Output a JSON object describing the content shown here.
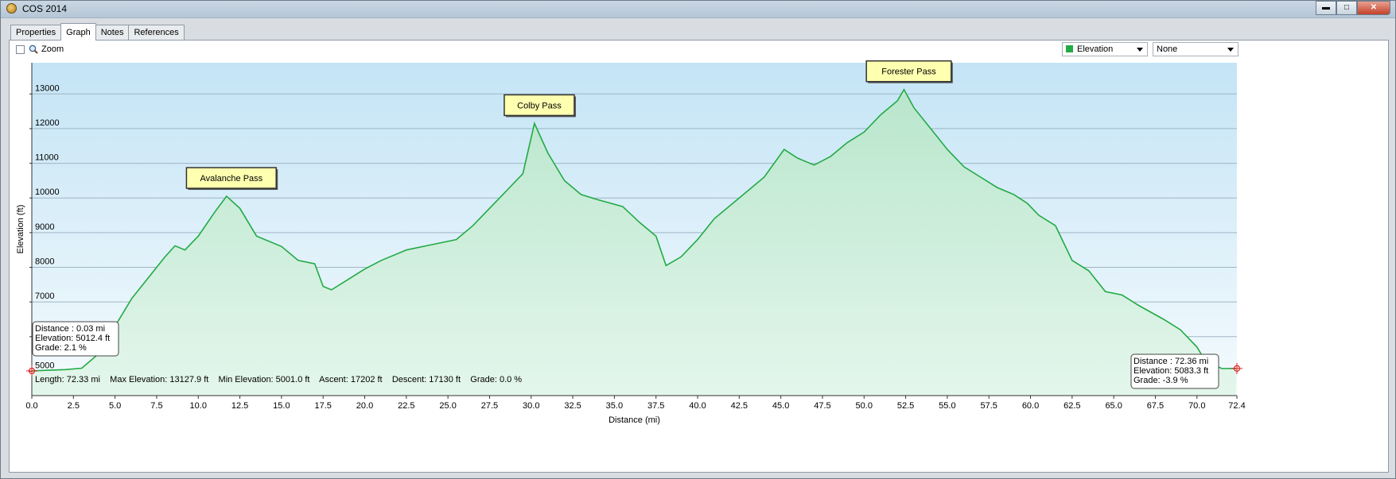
{
  "window": {
    "title": "COS 2014",
    "minimize": "▬",
    "maximize": "□",
    "close": "✕"
  },
  "tabs": [
    "Properties",
    "Graph",
    "Notes",
    "References"
  ],
  "toolbar": {
    "zoom_label": "Zoom",
    "series_select": "Elevation",
    "second_select": "None",
    "series_color": "#22aa44"
  },
  "chart_data": {
    "type": "area",
    "xlabel": "Distance  (mi)",
    "ylabel": "Elevation (ft)",
    "xlim": [
      0,
      72.4
    ],
    "ylim": [
      4300,
      13900
    ],
    "x_ticks": [
      "0.0",
      "2.5",
      "5.0",
      "7.5",
      "10.0",
      "12.5",
      "15.0",
      "17.5",
      "20.0",
      "22.5",
      "25.0",
      "27.5",
      "30.0",
      "32.5",
      "35.0",
      "37.5",
      "40.0",
      "42.5",
      "45.0",
      "47.5",
      "50.0",
      "52.5",
      "55.0",
      "57.5",
      "60.0",
      "62.5",
      "65.0",
      "67.5",
      "70.0",
      "72.4"
    ],
    "y_ticks": [
      "5000",
      "6000",
      "7000",
      "8000",
      "9000",
      "10000",
      "11000",
      "12000",
      "13000"
    ],
    "series": [
      {
        "name": "Elevation",
        "x": [
          0,
          1,
          2,
          3,
          4,
          5,
          6,
          7,
          8,
          8.6,
          9.2,
          10,
          11,
          11.7,
          12.5,
          13.5,
          15,
          16,
          17,
          17.5,
          18,
          19,
          20,
          21,
          22.5,
          24,
          25.5,
          26.5,
          27.5,
          28.5,
          29.5,
          30.2,
          31,
          32,
          33,
          34,
          35.5,
          36.5,
          37.5,
          38.1,
          39,
          40,
          41,
          42.5,
          44,
          45.2,
          46,
          47,
          48,
          49,
          50,
          51,
          52,
          52.4,
          53,
          54,
          55,
          56,
          57,
          58,
          59,
          59.8,
          60.5,
          61.5,
          62.5,
          63.5,
          64.5,
          65.5,
          66.5,
          68,
          69,
          70,
          70.5,
          71.5,
          72.36
        ],
        "values": [
          5012,
          5030,
          5050,
          5090,
          5500,
          6300,
          7100,
          7700,
          8300,
          8620,
          8500,
          8900,
          9600,
          10050,
          9700,
          8900,
          8600,
          8200,
          8100,
          7450,
          7350,
          7650,
          7950,
          8200,
          8500,
          8650,
          8800,
          9200,
          9700,
          10200,
          10700,
          12150,
          11300,
          10500,
          10100,
          9950,
          9750,
          9300,
          8900,
          8050,
          8300,
          8800,
          9400,
          10000,
          10600,
          11400,
          11150,
          10950,
          11200,
          11600,
          11900,
          12400,
          12800,
          13128,
          12600,
          12000,
          11400,
          10900,
          10600,
          10300,
          10100,
          9850,
          9500,
          9200,
          8200,
          7900,
          7300,
          7200,
          6900,
          6500,
          6200,
          5700,
          5300,
          5080,
          5083
        ]
      }
    ],
    "annotations": [
      {
        "label": "Avalanche Pass",
        "x": 11.7,
        "y": 10050
      },
      {
        "label": "Colby Pass",
        "x": 30.2,
        "y": 12150
      },
      {
        "label": "Forester Pass",
        "x": 52.4,
        "y": 13128
      }
    ],
    "cursor_start": {
      "lines": [
        "Distance  : 0.03 mi",
        "Elevation: 5012.4 ft",
        "Grade: 2.1 %"
      ]
    },
    "cursor_end": {
      "lines": [
        "Distance  : 72.36 mi",
        "Elevation: 5083.3 ft",
        "Grade: -3.9 %"
      ]
    },
    "stats": "Length: 72.33 mi    Max Elevation: 13127.9 ft    Min Elevation: 5001.0 ft    Ascent: 17202 ft    Descent: 17130 ft    Grade: 0.0 %",
    "grid": true
  }
}
